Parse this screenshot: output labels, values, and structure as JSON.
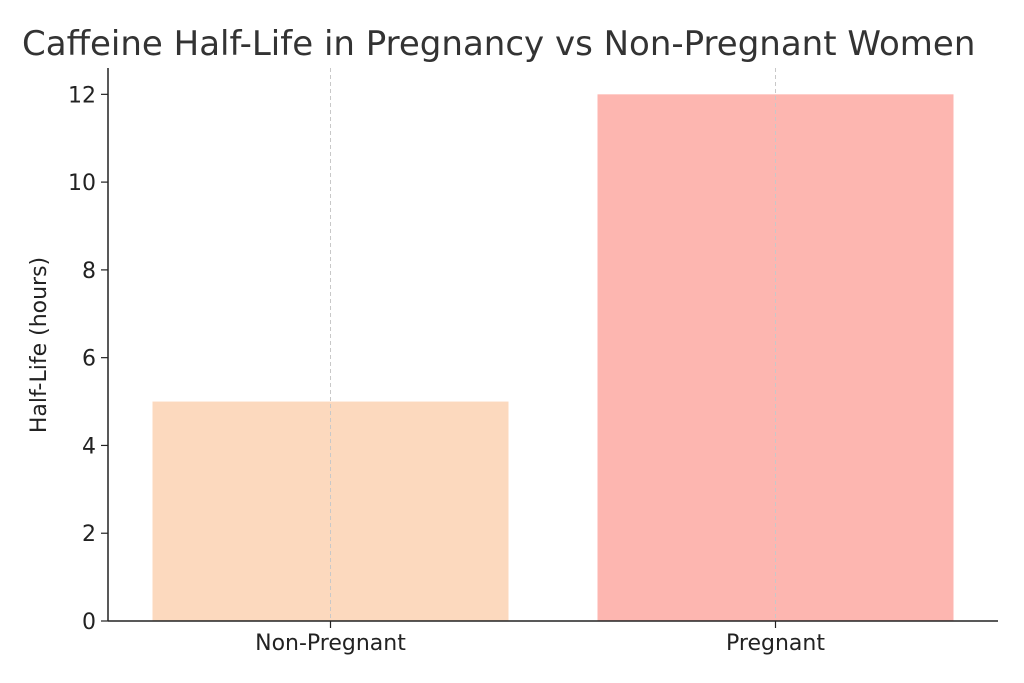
{
  "chart_data": {
    "type": "bar",
    "title": "Caffeine Half-Life in Pregnancy vs Non-Pregnant Women",
    "ylabel": "Half-Life (hours)",
    "categories": [
      "Non-Pregnant",
      "Pregnant"
    ],
    "values": [
      5,
      12
    ],
    "colors": [
      "#fcd9be",
      "#fdb6b0"
    ],
    "ylim": [
      0,
      12.6
    ],
    "yticks": [
      0,
      2,
      4,
      6,
      8,
      10,
      12
    ],
    "grid": "x"
  }
}
